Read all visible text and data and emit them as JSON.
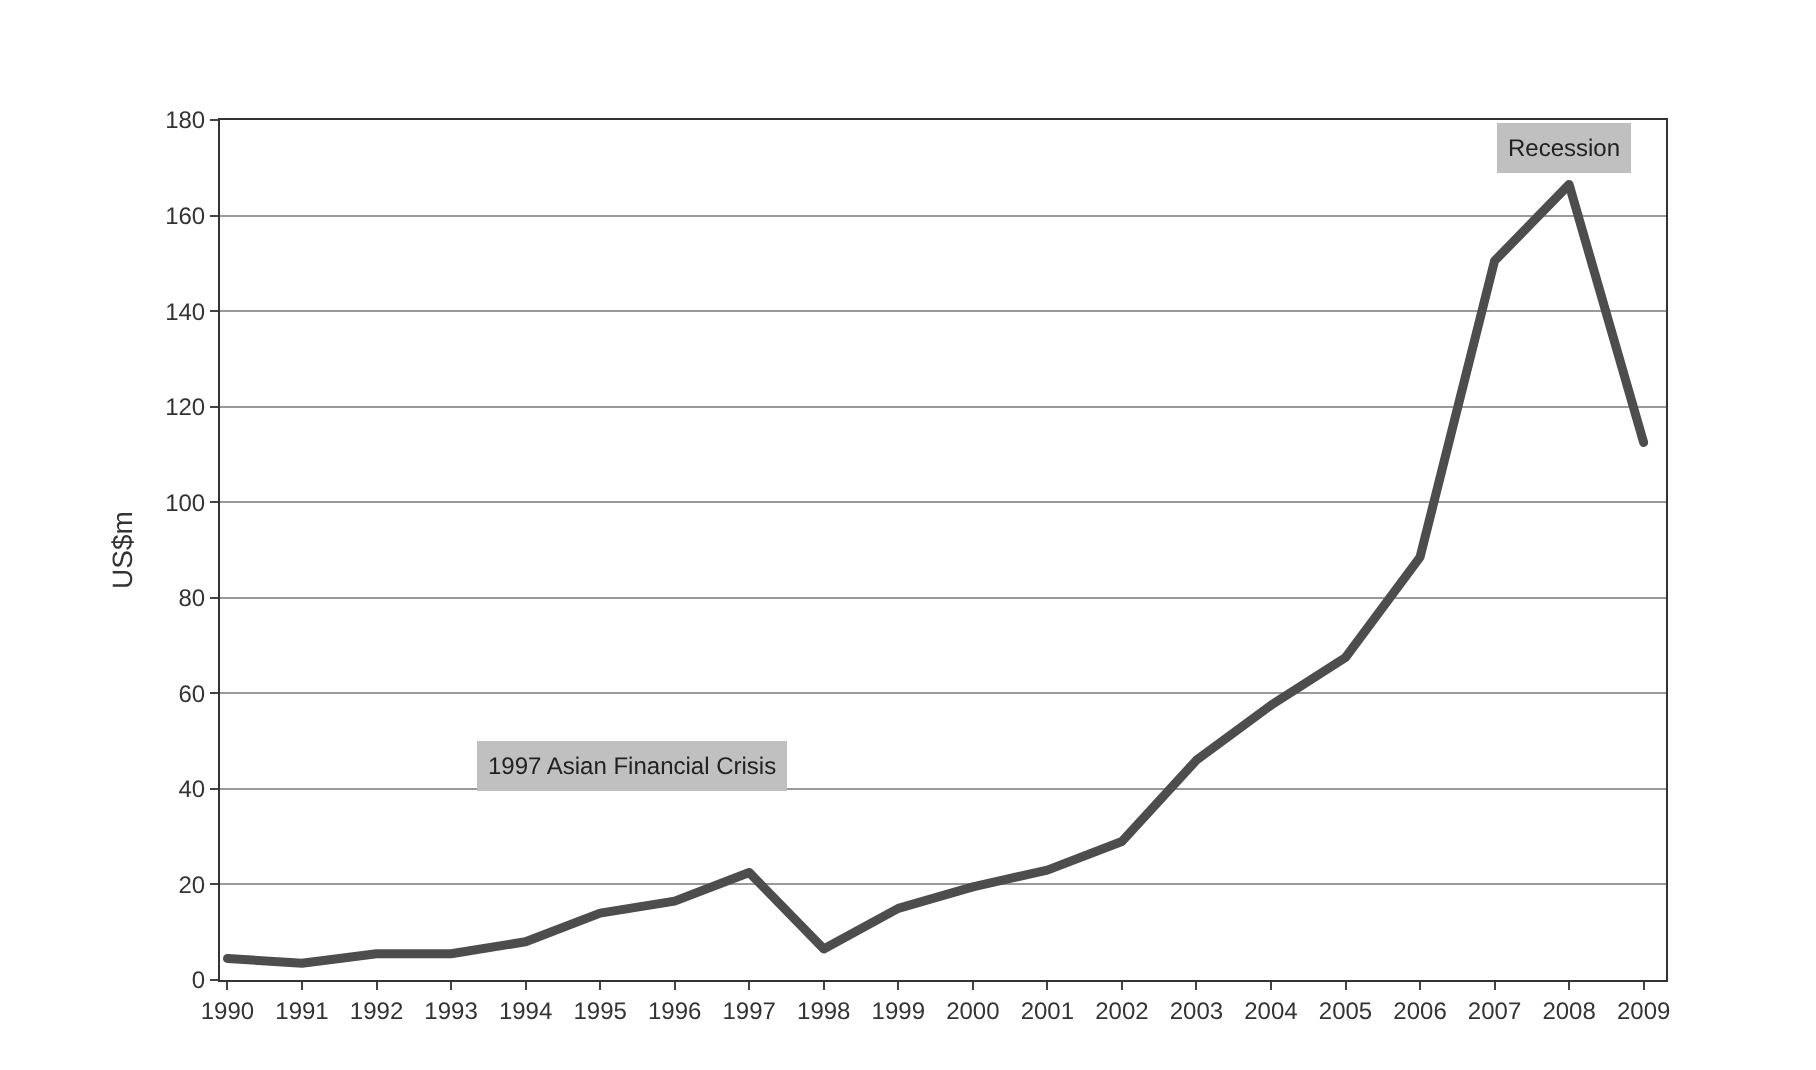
{
  "chart_data": {
    "type": "line",
    "ylabel": "US$m",
    "categories": [
      "1990",
      "1991",
      "1992",
      "1993",
      "1994",
      "1995",
      "1996",
      "1997",
      "1998",
      "1999",
      "2000",
      "2001",
      "2002",
      "2003",
      "2004",
      "2005",
      "2006",
      "2007",
      "2008",
      "2009"
    ],
    "series": [
      {
        "color": "#4d4d4d",
        "values": [
          4.5,
          3.5,
          5.5,
          5.5,
          8,
          14,
          16.5,
          22.5,
          6.5,
          15,
          19.5,
          23,
          29,
          46,
          57.5,
          67.5,
          88.5,
          150.5,
          166.5,
          112.5
        ]
      }
    ],
    "ylim": [
      0,
      180
    ],
    "yticks": [
      0,
      20,
      40,
      60,
      80,
      100,
      120,
      140,
      160,
      180
    ],
    "grid": "y",
    "marker": "none",
    "line_style": "solid",
    "annotations": [
      "1997 Asian Financial Crisis",
      "Recession"
    ]
  }
}
